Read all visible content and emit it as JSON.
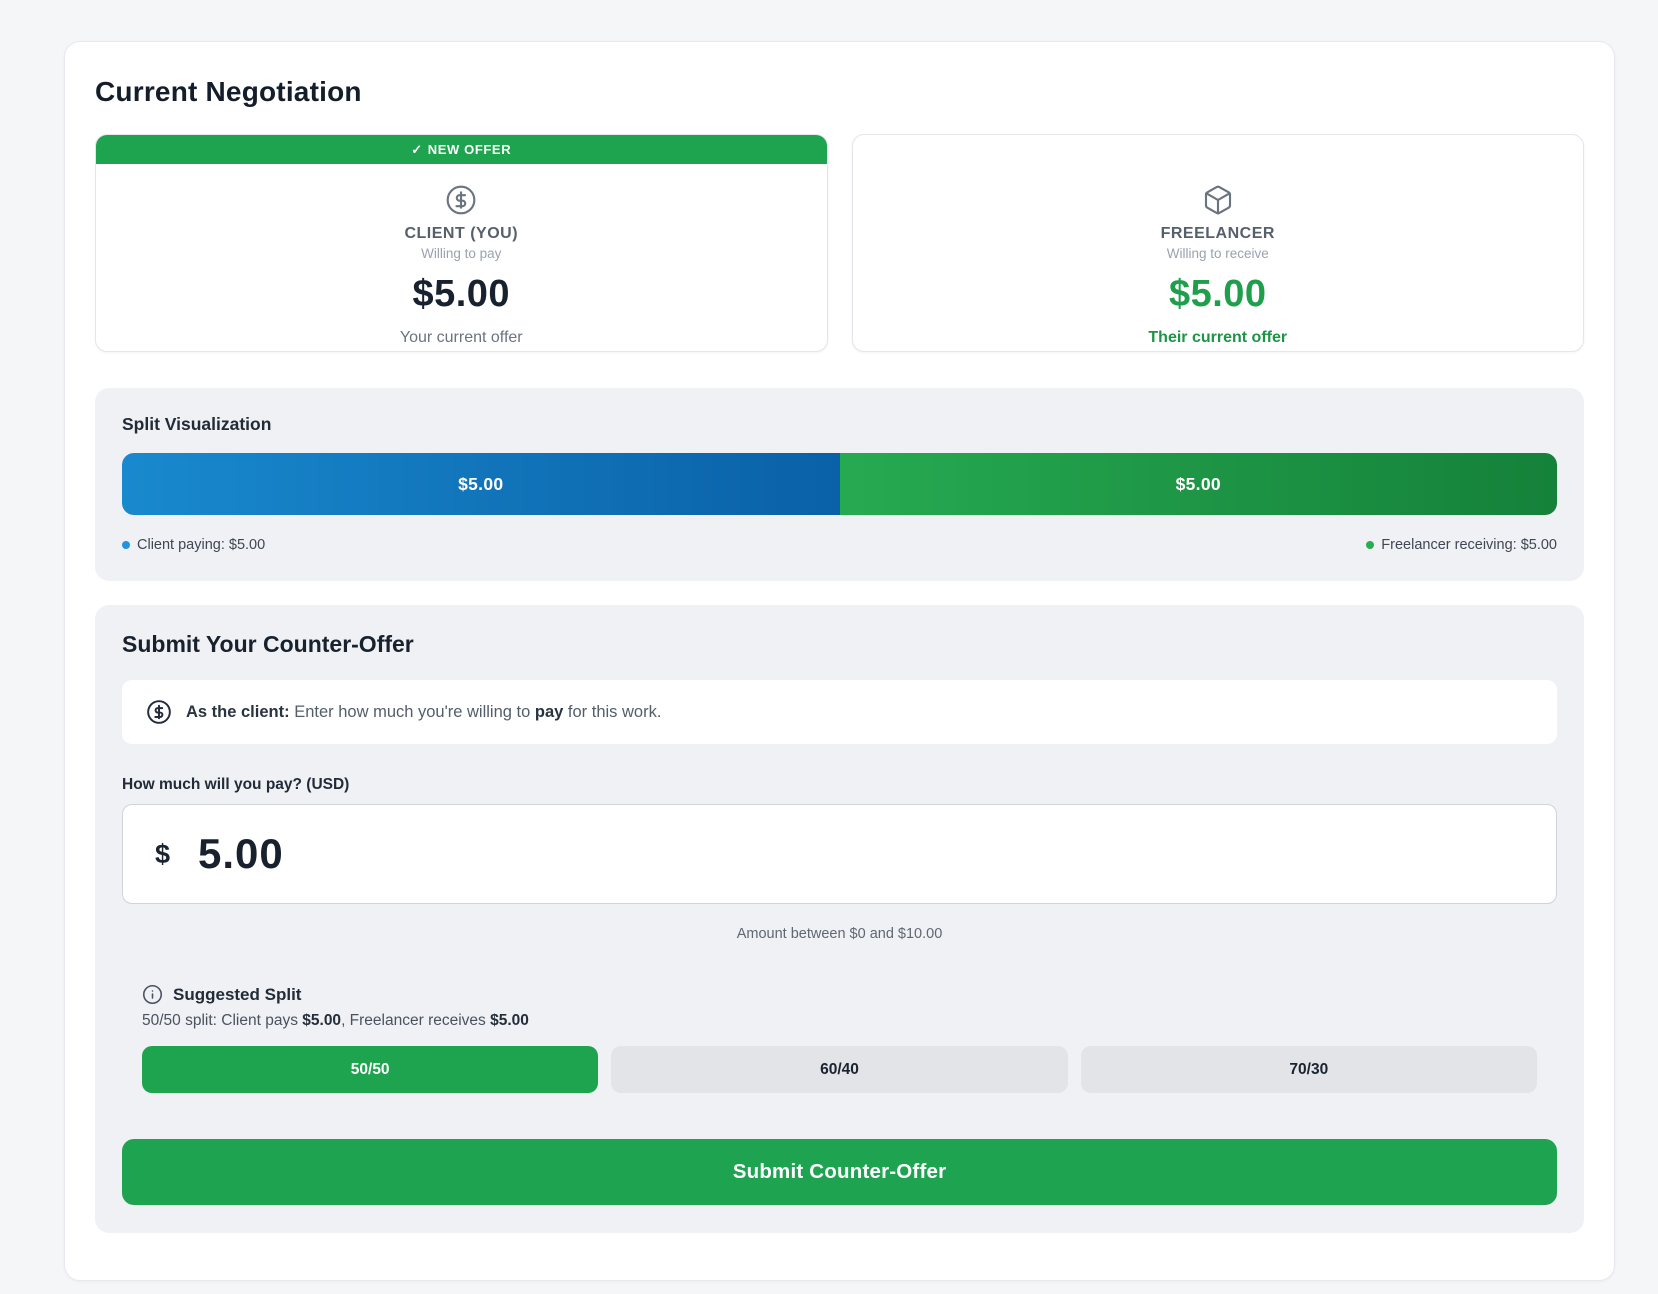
{
  "page": {
    "title": "Current Negotiation"
  },
  "offers": {
    "client": {
      "badge_check": "✓",
      "badge_label": "NEW OFFER",
      "role": "CLIENT (YOU)",
      "direction": "Willing to pay",
      "amount": "$5.00",
      "caption": "Your current offer",
      "icon": "dollar-circle-icon"
    },
    "freelancer": {
      "role": "FREELANCER",
      "direction": "Willing to receive",
      "amount": "$5.00",
      "caption": "Their current offer",
      "icon": "package-icon"
    }
  },
  "split": {
    "title": "Split Visualization",
    "client_pct": 50,
    "freelancer_pct": 50,
    "client_amount": "$5.00",
    "freelancer_amount": "$5.00",
    "legend_client": "Client paying: $5.00",
    "legend_freelancer": "Freelancer receiving: $5.00",
    "client_color_start": "#1989ce",
    "client_color_end": "#0a61a7",
    "freelancer_color_start": "#26aa51",
    "freelancer_color_end": "#15813a"
  },
  "counter": {
    "title": "Submit Your Counter-Offer",
    "info_icon": "dollar-circle-icon",
    "info_prefix": "As the client:",
    "info_mid": " Enter how much you're willing to ",
    "info_bold": "pay",
    "info_suffix": " for this work.",
    "input_label": "How much will you pay? (USD)",
    "currency_symbol": "$",
    "input_value": "5.00",
    "helper": "Amount between $0 and $10.00",
    "suggested_icon": "info-icon",
    "suggested_title": "Suggested Split",
    "suggested_desc_prefix": "50/50 split: Client pays ",
    "suggested_pay": "$5.00",
    "suggested_mid": ", Freelancer receives ",
    "suggested_receive": "$5.00",
    "split_options": [
      {
        "label": "50/50",
        "active": true
      },
      {
        "label": "60/40",
        "active": false
      },
      {
        "label": "70/30",
        "active": false
      }
    ],
    "submit_label": "Submit Counter-Offer"
  },
  "colors": {
    "accent_green": "#1ea34f",
    "accent_blue": "#1989ce",
    "green_text": "#1f9e4b"
  }
}
